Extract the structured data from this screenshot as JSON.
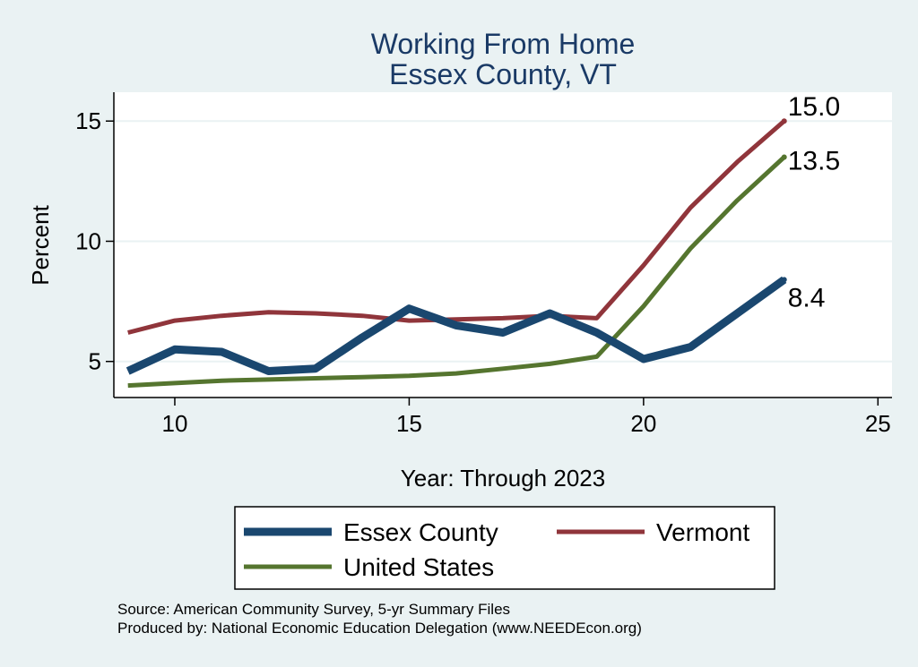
{
  "chart_data": {
    "type": "line",
    "title": [
      "Working From Home",
      "Essex County, VT"
    ],
    "xlabel": "Year: Through 2023",
    "ylabel": "Percent",
    "xlim": [
      8.7,
      25.3
    ],
    "ylim": [
      3.5,
      16.2
    ],
    "xticks": [
      10,
      15,
      20,
      25
    ],
    "yticks": [
      5,
      10,
      15
    ],
    "grid": "horizontal",
    "series": [
      {
        "name": "Essex County",
        "color": "#1a476f",
        "width": 9,
        "x": [
          9,
          10,
          11,
          12,
          13,
          14,
          15,
          16,
          17,
          18,
          19,
          20,
          21,
          22,
          23
        ],
        "y": [
          4.6,
          5.5,
          5.4,
          4.6,
          4.7,
          6.0,
          7.2,
          6.5,
          6.2,
          7.0,
          6.2,
          5.1,
          5.6,
          7.0,
          8.4
        ],
        "end_label": "8.4"
      },
      {
        "name": "Vermont",
        "color": "#90353b",
        "width": 5,
        "x": [
          9,
          10,
          11,
          12,
          13,
          14,
          15,
          16,
          17,
          18,
          19,
          20,
          21,
          22,
          23
        ],
        "y": [
          6.2,
          6.7,
          6.9,
          7.05,
          7.0,
          6.9,
          6.7,
          6.75,
          6.8,
          6.9,
          6.8,
          9.0,
          11.4,
          13.3,
          15.0
        ],
        "end_label": "15.0"
      },
      {
        "name": "United States",
        "color": "#55752f",
        "width": 5,
        "x": [
          9,
          10,
          11,
          12,
          13,
          14,
          15,
          16,
          17,
          18,
          19,
          20,
          21,
          22,
          23
        ],
        "y": [
          4.0,
          4.1,
          4.2,
          4.25,
          4.3,
          4.35,
          4.4,
          4.5,
          4.7,
          4.9,
          5.2,
          7.3,
          9.7,
          11.7,
          13.5
        ],
        "end_label": "13.5"
      }
    ],
    "legend_position": "bottom"
  },
  "source_lines": [
    "Source: American Community Survey, 5-yr Summary Files",
    "Produced by: National Economic Education Delegation (www.NEEDEcon.org)"
  ]
}
